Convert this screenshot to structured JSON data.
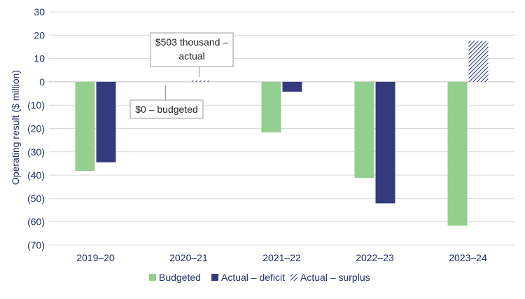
{
  "chart_data": {
    "type": "bar",
    "title": "",
    "xlabel": "",
    "ylabel": "Operating result ($ million)",
    "ylim": [
      -70,
      30
    ],
    "yticks": [
      30,
      20,
      10,
      0,
      -10,
      -20,
      -30,
      -40,
      -50,
      -60,
      -70
    ],
    "ytick_labels": [
      "30",
      "20",
      "10",
      "0",
      "(10)",
      "(20)",
      "(30)",
      "(40)",
      "(50)",
      "(60)",
      "(70)"
    ],
    "categories": [
      "2019–20",
      "2020–21",
      "2021–22",
      "2022–23",
      "2023–24"
    ],
    "series": [
      {
        "name": "Budgeted",
        "color": "#93cf8e",
        "pattern": "solid",
        "values": [
          -38.2,
          0,
          -21.7,
          -41.2,
          -61.7
        ]
      },
      {
        "name": "Actual – deficit",
        "color": "#343b7d",
        "pattern": "solid",
        "values": [
          -34.5,
          null,
          -4.2,
          -52.1,
          null
        ]
      },
      {
        "name": "Actual – surplus",
        "color": "#343b7d",
        "pattern": "hatched",
        "values": [
          null,
          0.503,
          null,
          null,
          17.6
        ]
      }
    ],
    "annotations": [
      {
        "lines": [
          "$503 thousand –",
          "actual"
        ],
        "category": "2020–21",
        "series": "Actual – surplus"
      },
      {
        "lines": [
          "$0 – budgeted"
        ],
        "category": "2020–21",
        "series": "Budgeted"
      }
    ],
    "grid": true,
    "legend_position": "bottom"
  }
}
